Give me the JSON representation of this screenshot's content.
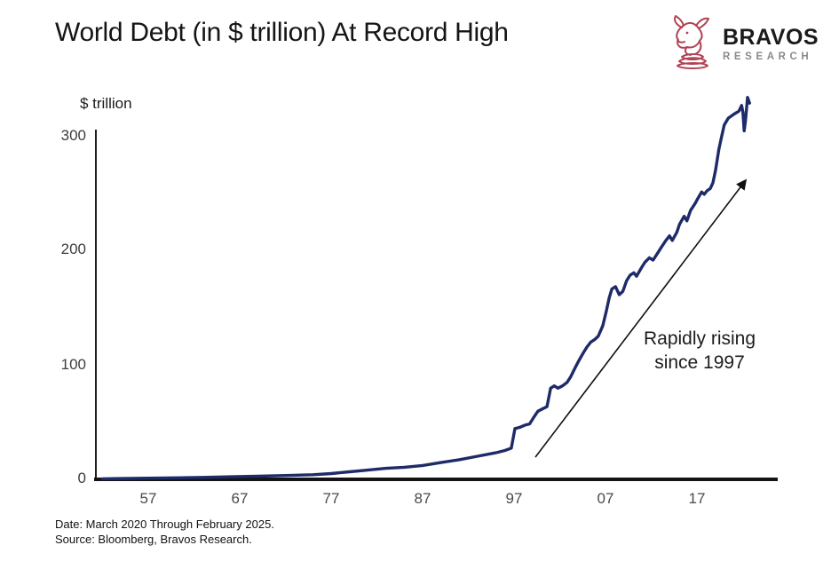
{
  "header": {
    "title": "World Debt (in $ trillion) At Record High",
    "logo": {
      "name": "BRAVOS",
      "subname": "RESEARCH"
    }
  },
  "chart": {
    "axis_unit_label": "$ trillion",
    "y_ticks": [
      "300",
      "200",
      "100",
      "0"
    ],
    "x_ticks": [
      "57",
      "67",
      "77",
      "87",
      "97",
      "07",
      "17"
    ],
    "annotation": {
      "line1": "Rapidly rising",
      "line2": "since 1997"
    }
  },
  "footer": {
    "date_line": "Date: March 2020 Through February 2025.",
    "source_line": "Source: Bloomberg, Bravos Research."
  },
  "colors": {
    "line": "#1e2b69",
    "axis": "#1a1a1a",
    "arrow": "#111111",
    "logo_bull": "#b04355"
  },
  "chart_data": {
    "type": "line",
    "title": "World Debt (in $ trillion) At Record High",
    "xlabel": "",
    "ylabel": "$ trillion",
    "x_tick_labels": [
      "57",
      "67",
      "77",
      "87",
      "97",
      "07",
      "17"
    ],
    "x_tick_years": [
      1957,
      1967,
      1977,
      1987,
      1997,
      2007,
      2017
    ],
    "x_range": [
      1952,
      2025
    ],
    "ylim": [
      0,
      330
    ],
    "y_ticks": [
      0,
      100,
      200,
      300
    ],
    "grid": false,
    "legend": false,
    "annotation": "Rapidly rising since 1997",
    "series": [
      {
        "name": "World debt ($ trillion)",
        "points": [
          [
            1952,
            0.5
          ],
          [
            1955,
            0.8
          ],
          [
            1957,
            1
          ],
          [
            1960,
            1.3
          ],
          [
            1963,
            1.7
          ],
          [
            1966,
            2.2
          ],
          [
            1969,
            2.7
          ],
          [
            1972,
            3.3
          ],
          [
            1975,
            4
          ],
          [
            1977,
            5
          ],
          [
            1979,
            6.5
          ],
          [
            1981,
            8
          ],
          [
            1983,
            9.5
          ],
          [
            1985,
            10.5
          ],
          [
            1987,
            12
          ],
          [
            1989,
            14.5
          ],
          [
            1991,
            17
          ],
          [
            1993,
            20
          ],
          [
            1995,
            23
          ],
          [
            1996,
            25
          ],
          [
            1996.7,
            27
          ],
          [
            1997.1,
            44
          ],
          [
            1997.6,
            45
          ],
          [
            1998.2,
            47
          ],
          [
            1998.7,
            48
          ],
          [
            1999.1,
            53
          ],
          [
            1999.6,
            59
          ],
          [
            2000.1,
            61
          ],
          [
            2000.6,
            63
          ],
          [
            2001,
            79
          ],
          [
            2001.4,
            81
          ],
          [
            2001.8,
            79
          ],
          [
            2002.3,
            81
          ],
          [
            2002.8,
            84
          ],
          [
            2003.2,
            89
          ],
          [
            2003.7,
            97
          ],
          [
            2004.1,
            103
          ],
          [
            2004.6,
            110
          ],
          [
            2005,
            115
          ],
          [
            2005.4,
            119
          ],
          [
            2005.8,
            121
          ],
          [
            2006.2,
            124
          ],
          [
            2006.7,
            133
          ],
          [
            2007.1,
            146
          ],
          [
            2007.4,
            157
          ],
          [
            2007.7,
            165
          ],
          [
            2008.1,
            167
          ],
          [
            2008.5,
            160
          ],
          [
            2008.9,
            163
          ],
          [
            2009.3,
            172
          ],
          [
            2009.7,
            177
          ],
          [
            2010.1,
            179
          ],
          [
            2010.4,
            176
          ],
          [
            2010.9,
            183
          ],
          [
            2011.3,
            188
          ],
          [
            2011.8,
            192
          ],
          [
            2012.2,
            190
          ],
          [
            2012.7,
            196
          ],
          [
            2013.1,
            201
          ],
          [
            2013.6,
            207
          ],
          [
            2014,
            211
          ],
          [
            2014.3,
            207
          ],
          [
            2014.8,
            214
          ],
          [
            2015.1,
            221
          ],
          [
            2015.6,
            228
          ],
          [
            2015.9,
            224
          ],
          [
            2016.3,
            233
          ],
          [
            2016.8,
            239
          ],
          [
            2017,
            242
          ],
          [
            2017.4,
            246
          ],
          [
            2017.7,
            249
          ],
          [
            2018.1,
            247
          ],
          [
            2018.5,
            250
          ],
          [
            2019,
            252
          ],
          [
            2019.4,
            257
          ],
          [
            2019.8,
            268
          ],
          [
            2020.3,
            286
          ],
          [
            2020.7,
            297
          ],
          [
            2021.1,
            307
          ],
          [
            2021.7,
            313
          ],
          [
            2022.2,
            315
          ],
          [
            2022.7,
            317
          ],
          [
            2023.3,
            319
          ],
          [
            2023.7,
            324
          ],
          [
            2023.9,
            318
          ],
          [
            2024.1,
            302
          ],
          [
            2024.3,
            311
          ],
          [
            2024.6,
            331
          ],
          [
            2024.9,
            326
          ]
        ]
      }
    ]
  }
}
